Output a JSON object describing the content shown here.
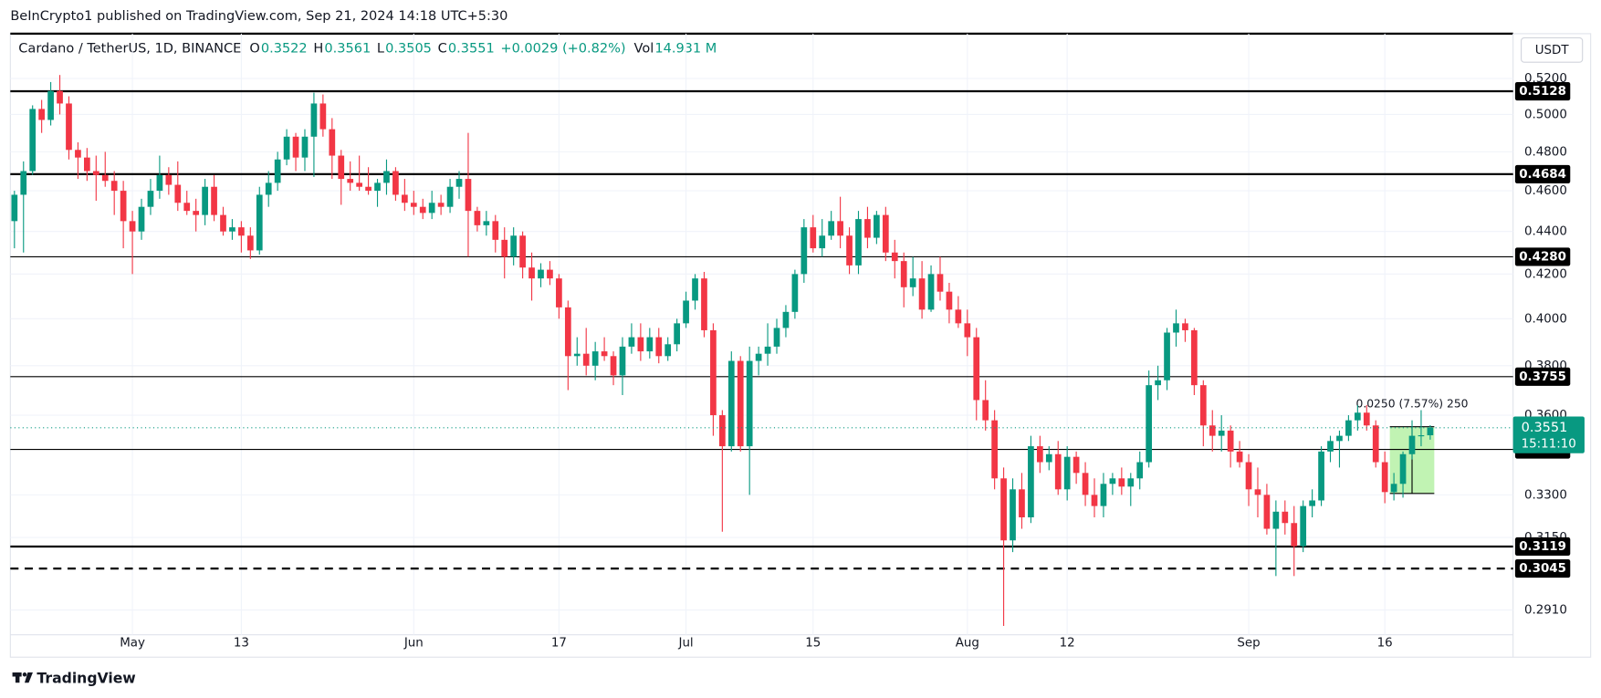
{
  "header": {
    "byline": "BeInCrypto1 published on TradingView.com, Sep 21, 2024 14:18 UTC+5:30",
    "brand": "TradingView"
  },
  "chart_data": {
    "type": "candlestick",
    "symbol": "Cardano / TetherUS, 1D, BINANCE",
    "legend_items": [
      {
        "key": "O",
        "value": "0.3522"
      },
      {
        "key": "H",
        "value": "0.3561"
      },
      {
        "key": "L",
        "value": "0.3505"
      },
      {
        "key": "C",
        "value": "0.3551"
      }
    ],
    "change": "+0.0029 (+0.82%)",
    "vol_key": "Vol",
    "vol": "14.931 M",
    "currency": "USDT",
    "up_color": "#089981",
    "down_color": "#f23645",
    "log_scale": true,
    "grid": true,
    "x0": "2024-04-18",
    "x": [
      "2024-04-18",
      "2024-04-19",
      "2024-04-20",
      "2024-04-21",
      "2024-04-22",
      "2024-04-23",
      "2024-04-24",
      "2024-04-25",
      "2024-04-26",
      "2024-04-27",
      "2024-04-28",
      "2024-04-29",
      "2024-04-30",
      "2024-05-01",
      "2024-05-02",
      "2024-05-03",
      "2024-05-04",
      "2024-05-05",
      "2024-05-06",
      "2024-05-07",
      "2024-05-08",
      "2024-05-09",
      "2024-05-10",
      "2024-05-11",
      "2024-05-12",
      "2024-05-13",
      "2024-05-14",
      "2024-05-15",
      "2024-05-16",
      "2024-05-17",
      "2024-05-18",
      "2024-05-19",
      "2024-05-20",
      "2024-05-21",
      "2024-05-22",
      "2024-05-23",
      "2024-05-24",
      "2024-05-25",
      "2024-05-26",
      "2024-05-27",
      "2024-05-28",
      "2024-05-29",
      "2024-05-30",
      "2024-05-31",
      "2024-06-01",
      "2024-06-02",
      "2024-06-03",
      "2024-06-04",
      "2024-06-05",
      "2024-06-06",
      "2024-06-07",
      "2024-06-08",
      "2024-06-09",
      "2024-06-10",
      "2024-06-11",
      "2024-06-12",
      "2024-06-13",
      "2024-06-14",
      "2024-06-15",
      "2024-06-16",
      "2024-06-17",
      "2024-06-18",
      "2024-06-19",
      "2024-06-20",
      "2024-06-21",
      "2024-06-22",
      "2024-06-23",
      "2024-06-24",
      "2024-06-25",
      "2024-06-26",
      "2024-06-27",
      "2024-06-28",
      "2024-06-29",
      "2024-06-30",
      "2024-07-01",
      "2024-07-02",
      "2024-07-03",
      "2024-07-04",
      "2024-07-05",
      "2024-07-06",
      "2024-07-07",
      "2024-07-08",
      "2024-07-09",
      "2024-07-10",
      "2024-07-11",
      "2024-07-12",
      "2024-07-13",
      "2024-07-14",
      "2024-07-15",
      "2024-07-16",
      "2024-07-17",
      "2024-07-18",
      "2024-07-19",
      "2024-07-20",
      "2024-07-21",
      "2024-07-22",
      "2024-07-23",
      "2024-07-24",
      "2024-07-25",
      "2024-07-26",
      "2024-07-27",
      "2024-07-28",
      "2024-07-29",
      "2024-07-30",
      "2024-07-31",
      "2024-08-01",
      "2024-08-02",
      "2024-08-03",
      "2024-08-04",
      "2024-08-05",
      "2024-08-06",
      "2024-08-07",
      "2024-08-08",
      "2024-08-09",
      "2024-08-10",
      "2024-08-11",
      "2024-08-12",
      "2024-08-13",
      "2024-08-14",
      "2024-08-15",
      "2024-08-16",
      "2024-08-17",
      "2024-08-18",
      "2024-08-19",
      "2024-08-20",
      "2024-08-21",
      "2024-08-22",
      "2024-08-23",
      "2024-08-24",
      "2024-08-25",
      "2024-08-26",
      "2024-08-27",
      "2024-08-28",
      "2024-08-29",
      "2024-08-30",
      "2024-08-31",
      "2024-09-01",
      "2024-09-02",
      "2024-09-03",
      "2024-09-04",
      "2024-09-05",
      "2024-09-06",
      "2024-09-07",
      "2024-09-08",
      "2024-09-09",
      "2024-09-10",
      "2024-09-11",
      "2024-09-12",
      "2024-09-13",
      "2024-09-14",
      "2024-09-15",
      "2024-09-16",
      "2024-09-17",
      "2024-09-18",
      "2024-09-19",
      "2024-09-20",
      "2024-09-21"
    ],
    "open": [
      0.445,
      0.458,
      0.47,
      0.503,
      0.497,
      0.513,
      0.506,
      0.481,
      0.477,
      0.47,
      0.468,
      0.465,
      0.46,
      0.445,
      0.44,
      0.452,
      0.46,
      0.468,
      0.463,
      0.454,
      0.45,
      0.448,
      0.462,
      0.448,
      0.44,
      0.442,
      0.438,
      0.431,
      0.458,
      0.464,
      0.476,
      0.488,
      0.477,
      0.488,
      0.506,
      0.492,
      0.478,
      0.466,
      0.464,
      0.462,
      0.46,
      0.464,
      0.47,
      0.458,
      0.454,
      0.452,
      0.449,
      0.454,
      0.452,
      0.462,
      0.466,
      0.45,
      0.443,
      0.445,
      0.436,
      0.428,
      0.438,
      0.423,
      0.418,
      0.422,
      0.418,
      0.405,
      0.384,
      0.385,
      0.38,
      0.386,
      0.384,
      0.376,
      0.388,
      0.392,
      0.386,
      0.392,
      0.384,
      0.389,
      0.398,
      0.408,
      0.418,
      0.395,
      0.36,
      0.348,
      0.382,
      0.348,
      0.382,
      0.385,
      0.388,
      0.396,
      0.403,
      0.42,
      0.442,
      0.432,
      0.438,
      0.445,
      0.438,
      0.424,
      0.446,
      0.437,
      0.448,
      0.43,
      0.426,
      0.414,
      0.418,
      0.404,
      0.42,
      0.412,
      0.404,
      0.398,
      0.392,
      0.366,
      0.358,
      0.336,
      0.314,
      0.332,
      0.322,
      0.348,
      0.342,
      0.345,
      0.332,
      0.344,
      0.338,
      0.33,
      0.326,
      0.334,
      0.336,
      0.333,
      0.336,
      0.342,
      0.372,
      0.374,
      0.394,
      0.398,
      0.395,
      0.372,
      0.356,
      0.352,
      0.354,
      0.346,
      0.342,
      0.332,
      0.33,
      0.318,
      0.324,
      0.32,
      0.312,
      0.326,
      0.328,
      0.346,
      0.35,
      0.352,
      0.358,
      0.361,
      0.356,
      0.342,
      0.331,
      0.334,
      0.345,
      0.352,
      0.3522
    ],
    "high": [
      0.46,
      0.475,
      0.505,
      0.508,
      0.518,
      0.522,
      0.51,
      0.485,
      0.482,
      0.478,
      0.48,
      0.47,
      0.465,
      0.45,
      0.456,
      0.466,
      0.478,
      0.472,
      0.475,
      0.46,
      0.456,
      0.466,
      0.468,
      0.452,
      0.446,
      0.445,
      0.442,
      0.462,
      0.47,
      0.48,
      0.492,
      0.49,
      0.492,
      0.512,
      0.511,
      0.498,
      0.481,
      0.475,
      0.478,
      0.472,
      0.466,
      0.476,
      0.472,
      0.466,
      0.46,
      0.456,
      0.46,
      0.458,
      0.466,
      0.47,
      0.49,
      0.452,
      0.45,
      0.448,
      0.442,
      0.442,
      0.44,
      0.43,
      0.425,
      0.426,
      0.42,
      0.408,
      0.392,
      0.396,
      0.39,
      0.392,
      0.386,
      0.392,
      0.398,
      0.398,
      0.396,
      0.396,
      0.392,
      0.4,
      0.412,
      0.42,
      0.421,
      0.398,
      0.362,
      0.386,
      0.384,
      0.388,
      0.388,
      0.398,
      0.4,
      0.406,
      0.422,
      0.446,
      0.448,
      0.446,
      0.45,
      0.457,
      0.442,
      0.45,
      0.452,
      0.45,
      0.452,
      0.436,
      0.43,
      0.428,
      0.426,
      0.424,
      0.428,
      0.416,
      0.41,
      0.404,
      0.396,
      0.374,
      0.362,
      0.34,
      0.336,
      0.338,
      0.352,
      0.352,
      0.348,
      0.35,
      0.348,
      0.346,
      0.342,
      0.336,
      0.338,
      0.338,
      0.34,
      0.338,
      0.346,
      0.378,
      0.38,
      0.396,
      0.404,
      0.4,
      0.396,
      0.374,
      0.362,
      0.36,
      0.356,
      0.35,
      0.345,
      0.34,
      0.334,
      0.328,
      0.328,
      0.326,
      0.328,
      0.332,
      0.348,
      0.352,
      0.354,
      0.36,
      0.364,
      0.364,
      0.358,
      0.346,
      0.338,
      0.346,
      0.358,
      0.362,
      0.3561
    ],
    "low": [
      0.432,
      0.43,
      0.468,
      0.49,
      0.494,
      0.5,
      0.476,
      0.466,
      0.465,
      0.455,
      0.462,
      0.448,
      0.432,
      0.42,
      0.436,
      0.448,
      0.456,
      0.458,
      0.45,
      0.448,
      0.44,
      0.443,
      0.445,
      0.438,
      0.436,
      0.43,
      0.427,
      0.429,
      0.452,
      0.46,
      0.473,
      0.47,
      0.47,
      0.467,
      0.488,
      0.466,
      0.453,
      0.46,
      0.46,
      0.458,
      0.452,
      0.458,
      0.455,
      0.45,
      0.448,
      0.446,
      0.446,
      0.448,
      0.449,
      0.456,
      0.428,
      0.44,
      0.438,
      0.43,
      0.418,
      0.424,
      0.418,
      0.408,
      0.414,
      0.415,
      0.4,
      0.37,
      0.38,
      0.376,
      0.374,
      0.382,
      0.372,
      0.368,
      0.385,
      0.382,
      0.383,
      0.381,
      0.382,
      0.386,
      0.396,
      0.404,
      0.392,
      0.352,
      0.317,
      0.346,
      0.346,
      0.33,
      0.376,
      0.38,
      0.385,
      0.392,
      0.4,
      0.416,
      0.43,
      0.428,
      0.436,
      0.432,
      0.42,
      0.42,
      0.432,
      0.434,
      0.426,
      0.418,
      0.405,
      0.41,
      0.4,
      0.403,
      0.408,
      0.398,
      0.396,
      0.384,
      0.358,
      0.354,
      0.332,
      0.286,
      0.31,
      0.318,
      0.32,
      0.338,
      0.339,
      0.33,
      0.328,
      0.334,
      0.326,
      0.322,
      0.322,
      0.33,
      0.33,
      0.326,
      0.332,
      0.34,
      0.366,
      0.37,
      0.388,
      0.39,
      0.368,
      0.348,
      0.346,
      0.346,
      0.34,
      0.34,
      0.326,
      0.322,
      0.316,
      0.302,
      0.316,
      0.302,
      0.31,
      0.322,
      0.326,
      0.342,
      0.34,
      0.35,
      0.354,
      0.354,
      0.34,
      0.327,
      0.328,
      0.329,
      0.343,
      0.348,
      0.3505
    ],
    "close": [
      0.458,
      0.47,
      0.503,
      0.497,
      0.513,
      0.506,
      0.481,
      0.477,
      0.47,
      0.468,
      0.465,
      0.46,
      0.445,
      0.44,
      0.452,
      0.46,
      0.468,
      0.463,
      0.454,
      0.45,
      0.448,
      0.462,
      0.448,
      0.44,
      0.442,
      0.438,
      0.431,
      0.458,
      0.464,
      0.476,
      0.488,
      0.477,
      0.488,
      0.506,
      0.492,
      0.478,
      0.466,
      0.464,
      0.462,
      0.46,
      0.464,
      0.47,
      0.458,
      0.454,
      0.452,
      0.449,
      0.454,
      0.452,
      0.462,
      0.466,
      0.45,
      0.443,
      0.445,
      0.436,
      0.428,
      0.438,
      0.423,
      0.418,
      0.422,
      0.418,
      0.405,
      0.384,
      0.385,
      0.38,
      0.386,
      0.384,
      0.376,
      0.388,
      0.392,
      0.386,
      0.392,
      0.384,
      0.389,
      0.398,
      0.408,
      0.418,
      0.395,
      0.36,
      0.348,
      0.382,
      0.348,
      0.382,
      0.385,
      0.388,
      0.396,
      0.403,
      0.42,
      0.442,
      0.432,
      0.438,
      0.445,
      0.438,
      0.424,
      0.446,
      0.437,
      0.448,
      0.43,
      0.426,
      0.414,
      0.418,
      0.404,
      0.42,
      0.412,
      0.404,
      0.398,
      0.392,
      0.366,
      0.358,
      0.336,
      0.314,
      0.332,
      0.322,
      0.348,
      0.342,
      0.345,
      0.332,
      0.344,
      0.338,
      0.33,
      0.326,
      0.334,
      0.336,
      0.333,
      0.336,
      0.342,
      0.372,
      0.374,
      0.394,
      0.398,
      0.395,
      0.372,
      0.356,
      0.352,
      0.354,
      0.346,
      0.342,
      0.332,
      0.33,
      0.318,
      0.324,
      0.32,
      0.312,
      0.326,
      0.328,
      0.346,
      0.35,
      0.352,
      0.358,
      0.361,
      0.356,
      0.342,
      0.331,
      0.334,
      0.345,
      0.352,
      0.3522,
      0.3551
    ],
    "xticks": [
      {
        "value": "2024-05-01",
        "label": "May"
      },
      {
        "value": "2024-05-13",
        "label": "13"
      },
      {
        "value": "2024-06-01",
        "label": "Jun"
      },
      {
        "value": "2024-06-17",
        "label": "17"
      },
      {
        "value": "2024-07-01",
        "label": "Jul"
      },
      {
        "value": "2024-07-15",
        "label": "15"
      },
      {
        "value": "2024-08-01",
        "label": "Aug"
      },
      {
        "value": "2024-08-12",
        "label": "12"
      },
      {
        "value": "2024-09-01",
        "label": "Sep"
      },
      {
        "value": "2024-09-16",
        "label": "16"
      }
    ],
    "ylim": [
      0.2767,
      0.5461
    ],
    "yticks": [
      {
        "value": 0.52,
        "label": "0.5200"
      },
      {
        "value": 0.5,
        "label": "0.5000"
      },
      {
        "value": 0.48,
        "label": "0.4800"
      },
      {
        "value": 0.46,
        "label": "0.4600"
      },
      {
        "value": 0.44,
        "label": "0.4400"
      },
      {
        "value": 0.42,
        "label": "0.4200"
      },
      {
        "value": 0.4,
        "label": "0.4000"
      },
      {
        "value": 0.38,
        "label": "0.3800"
      },
      {
        "value": 0.36,
        "label": "0.3600"
      },
      {
        "value": 0.33,
        "label": "0.3300"
      },
      {
        "value": 0.315,
        "label": "0.3150"
      },
      {
        "value": 0.291,
        "label": "0.2910"
      }
    ],
    "levels": [
      {
        "value": 0.5128,
        "style": "solid",
        "width": 2
      },
      {
        "value": 0.4684,
        "style": "solid",
        "width": 2
      },
      {
        "value": {
          "value": 0.428,
          "label": "0.4280"
        },
        "style": "solid",
        "width": 1
      },
      {
        "value": 0.3755,
        "style": "solid",
        "width": 1
      },
      {
        "value": 0.3468,
        "style": "solid",
        "width": 1
      },
      {
        "value": 0.3119,
        "style": "solid",
        "width": 2
      },
      {
        "value": 0.3045,
        "style": "dashed",
        "width": 2
      }
    ],
    "last_price": {
      "value": 0.3551,
      "countdown": "15:11:10",
      "color": "#089981"
    },
    "measure": {
      "label": "0.0250 (7.57%) 250",
      "low": 0.3305,
      "high": 0.3555,
      "from": "2024-09-17",
      "to": "2024-09-21",
      "color": "#b2f0a0"
    }
  }
}
